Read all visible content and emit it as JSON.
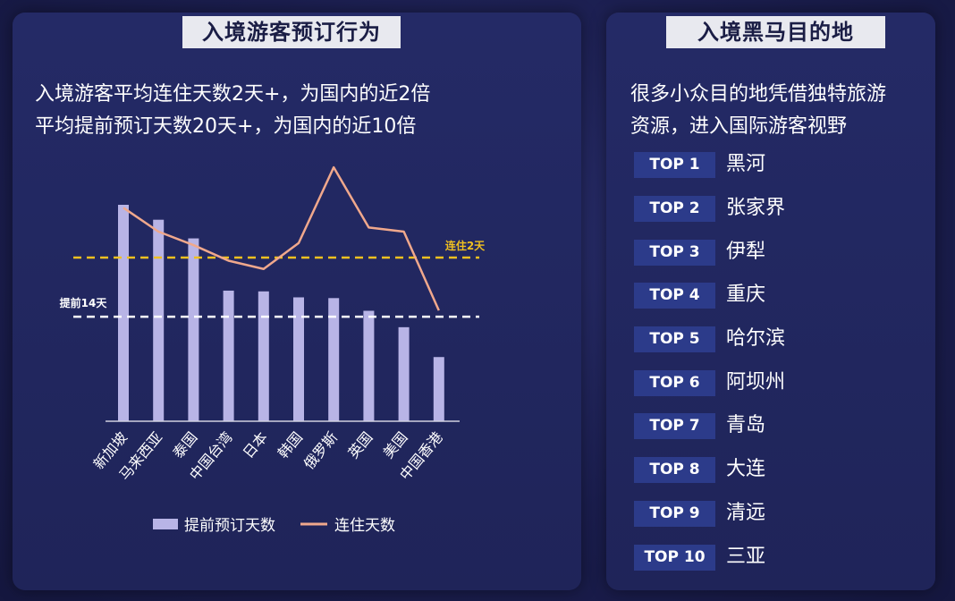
{
  "left_panel": {
    "title": "入境游客预订行为",
    "desc_line1": "入境游客平均连住天数2天+，为国内的近2倍",
    "desc_line2": "平均提前预订天数20天+，为国内的近10倍"
  },
  "right_panel": {
    "title": "入境黑马目的地",
    "desc_line1": "很多小众目的地凭借独特旅游",
    "desc_line2": "资源，进入国际游客视野",
    "ranks": [
      {
        "badge": "TOP 1",
        "name": "黑河"
      },
      {
        "badge": "TOP 2",
        "name": "张家界"
      },
      {
        "badge": "TOP 3",
        "name": "伊犁"
      },
      {
        "badge": "TOP 4",
        "name": "重庆"
      },
      {
        "badge": "TOP 5",
        "name": "哈尔滨"
      },
      {
        "badge": "TOP 6",
        "name": "阿坝州"
      },
      {
        "badge": "TOP 7",
        "name": "青岛"
      },
      {
        "badge": "TOP 8",
        "name": "大连"
      },
      {
        "badge": "TOP 9",
        "name": "清远"
      },
      {
        "badge": "TOP 10",
        "name": "三亚"
      }
    ]
  },
  "chart_data": {
    "type": "bar",
    "categories": [
      "新加坡",
      "马来西亚",
      "泰国",
      "中国台湾",
      "日本",
      "韩国",
      "俄罗斯",
      "英国",
      "美国",
      "中国香港"
    ],
    "series": [
      {
        "name": "提前预订天数",
        "type": "bar",
        "values": [
          29,
          27,
          24.5,
          17.5,
          17.4,
          16.6,
          16.5,
          14.8,
          12.6,
          8.6
        ],
        "color": "#b8b4e6"
      },
      {
        "name": "连住天数",
        "type": "line",
        "values": [
          2.48,
          2.25,
          2.12,
          1.97,
          1.89,
          2.14,
          2.87,
          2.29,
          2.25,
          1.49
        ],
        "color": "#f0a88c"
      }
    ],
    "reference_lines": [
      {
        "label": "连住2天",
        "value": 2,
        "axis": "line",
        "color": "#f0c020"
      },
      {
        "label": "提前14天",
        "value": 14,
        "axis": "bar",
        "color": "#ffffff"
      }
    ],
    "legend_position": "bottom",
    "grid": false,
    "y_axis_visible": false
  }
}
